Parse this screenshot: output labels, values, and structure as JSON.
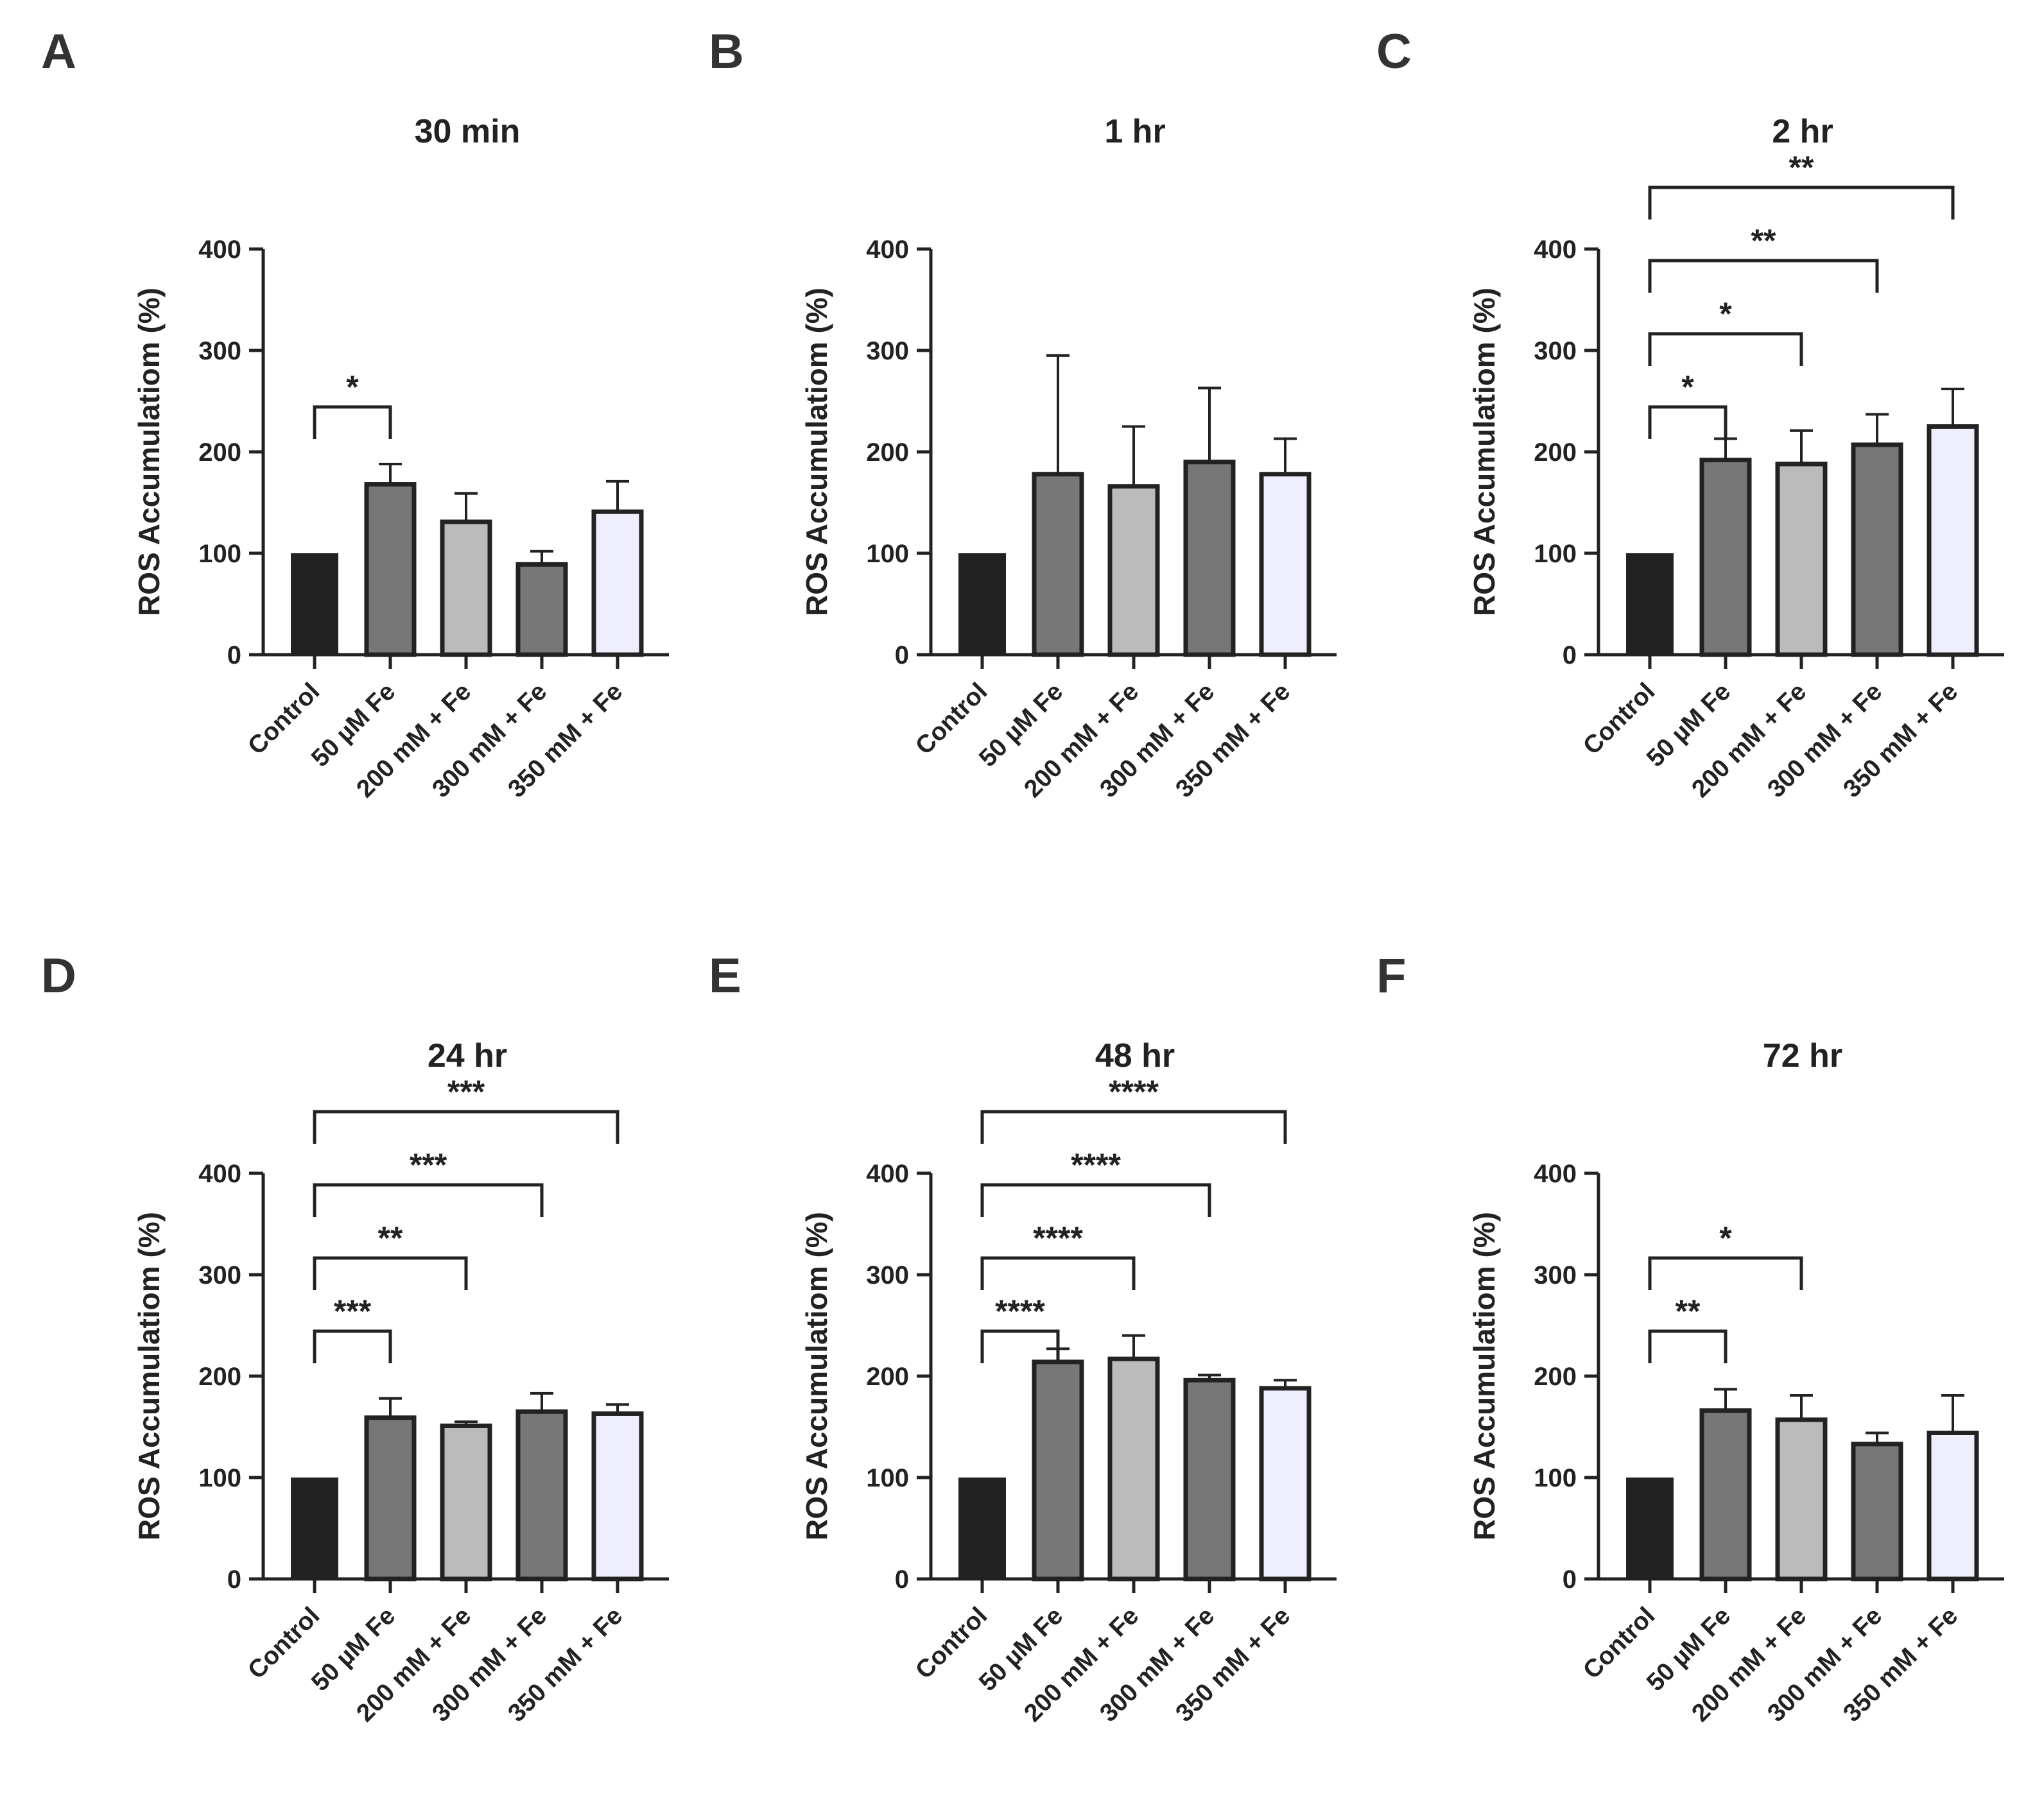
{
  "figure": {
    "categories": [
      "Control",
      "50 µM Fe",
      "200 mM + Fe",
      "300 mM + Fe",
      "350 mM + Fe"
    ],
    "bar_colors": [
      "#222222",
      "#777777",
      "#bbbbbb",
      "#777777",
      "#eeeefc"
    ],
    "ylabel": "ROS Accumulatiom (%)",
    "yticks": [
      "0",
      "100",
      "200",
      "300",
      "400"
    ]
  },
  "chart_data": [
    {
      "panel": "A",
      "title": "30 min",
      "type": "bar",
      "categories": [
        "Control",
        "50 µM Fe",
        "200 mM + Fe",
        "300 mM + Fe",
        "350 mM + Fe"
      ],
      "values": [
        100,
        168,
        131,
        89,
        141
      ],
      "errors": [
        0,
        20,
        28,
        13,
        30
      ],
      "ylabel": "ROS Accumulatiom (%)",
      "ylim": [
        0,
        400
      ],
      "significance": [
        {
          "from": 0,
          "to": 1,
          "label": "*"
        }
      ]
    },
    {
      "panel": "B",
      "title": "1 hr",
      "type": "bar",
      "categories": [
        "Control",
        "50 µM Fe",
        "200 mM + Fe",
        "300 mM + Fe",
        "350 mM + Fe"
      ],
      "values": [
        100,
        178,
        166,
        190,
        178
      ],
      "errors": [
        0,
        117,
        59,
        73,
        35
      ],
      "ylabel": "ROS Accumulatiom (%)",
      "ylim": [
        0,
        400
      ],
      "significance": []
    },
    {
      "panel": "C",
      "title": "2 hr",
      "type": "bar",
      "categories": [
        "Control",
        "50 µM Fe",
        "200 mM + Fe",
        "300 mM + Fe",
        "350 mM + Fe"
      ],
      "values": [
        100,
        192,
        188,
        207,
        225
      ],
      "errors": [
        0,
        21,
        33,
        30,
        37
      ],
      "ylabel": "ROS Accumulatiom (%)",
      "ylim": [
        0,
        400
      ],
      "significance": [
        {
          "from": 0,
          "to": 1,
          "label": "*"
        },
        {
          "from": 0,
          "to": 2,
          "label": "*"
        },
        {
          "from": 0,
          "to": 3,
          "label": "**"
        },
        {
          "from": 0,
          "to": 4,
          "label": "**"
        }
      ]
    },
    {
      "panel": "D",
      "title": "24 hr",
      "type": "bar",
      "categories": [
        "Control",
        "50 µM Fe",
        "200 mM + Fe",
        "300 mM + Fe",
        "350 mM + Fe"
      ],
      "values": [
        100,
        159,
        151,
        165,
        163
      ],
      "errors": [
        0,
        19,
        4,
        18,
        9
      ],
      "ylabel": "ROS Accumulatiom (%)",
      "ylim": [
        0,
        400
      ],
      "significance": [
        {
          "from": 0,
          "to": 1,
          "label": "***"
        },
        {
          "from": 0,
          "to": 2,
          "label": "**"
        },
        {
          "from": 0,
          "to": 3,
          "label": "***"
        },
        {
          "from": 0,
          "to": 4,
          "label": "***"
        }
      ]
    },
    {
      "panel": "E",
      "title": "48 hr",
      "type": "bar",
      "categories": [
        "Control",
        "50 µM Fe",
        "200 mM + Fe",
        "300 mM + Fe",
        "350 mM + Fe"
      ],
      "values": [
        100,
        214,
        217,
        196,
        188
      ],
      "errors": [
        0,
        13,
        23,
        5,
        8
      ],
      "ylabel": "ROS Accumulatiom (%)",
      "ylim": [
        0,
        400
      ],
      "significance": [
        {
          "from": 0,
          "to": 1,
          "label": "****"
        },
        {
          "from": 0,
          "to": 2,
          "label": "****"
        },
        {
          "from": 0,
          "to": 3,
          "label": "****"
        },
        {
          "from": 0,
          "to": 4,
          "label": "****"
        }
      ]
    },
    {
      "panel": "F",
      "title": "72 hr",
      "type": "bar",
      "categories": [
        "Control",
        "50 µM Fe",
        "200 mM + Fe",
        "300 mM + Fe",
        "350 mM + Fe"
      ],
      "values": [
        100,
        166,
        157,
        133,
        144
      ],
      "errors": [
        0,
        21,
        24,
        11,
        37
      ],
      "ylabel": "ROS Accumulatiom (%)",
      "ylim": [
        0,
        400
      ],
      "significance": [
        {
          "from": 0,
          "to": 1,
          "label": "**"
        },
        {
          "from": 0,
          "to": 2,
          "label": "*"
        }
      ]
    }
  ]
}
